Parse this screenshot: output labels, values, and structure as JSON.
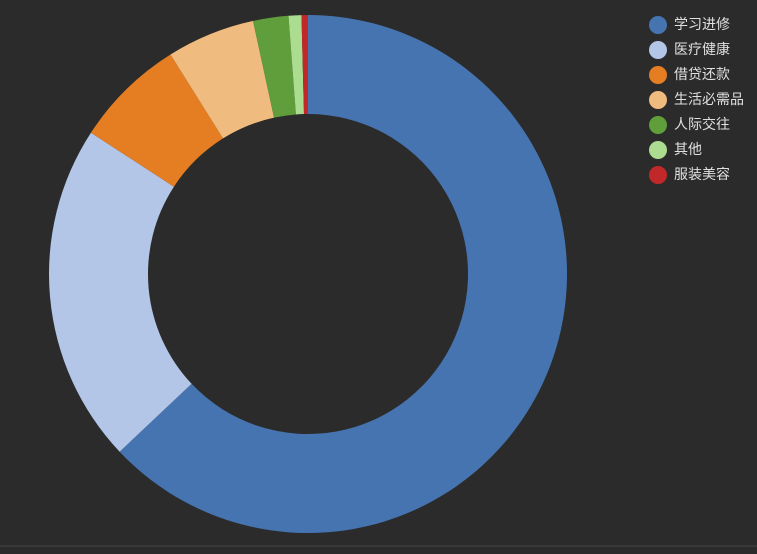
{
  "chart_data": {
    "type": "pie",
    "donut": true,
    "categories": [
      "学习进修",
      "医疗健康",
      "借贷还款",
      "生活必需品",
      "人际交往",
      "其他",
      "服装美容"
    ],
    "values": [
      62.9,
      21.2,
      6.9,
      5.5,
      2.2,
      0.8,
      0.4
    ],
    "colors": [
      "#4674b1",
      "#b3c6e7",
      "#e57e22",
      "#f0bb7e",
      "#5f9e3a",
      "#acdc8f",
      "#c0282a"
    ],
    "legend": "top-right"
  }
}
